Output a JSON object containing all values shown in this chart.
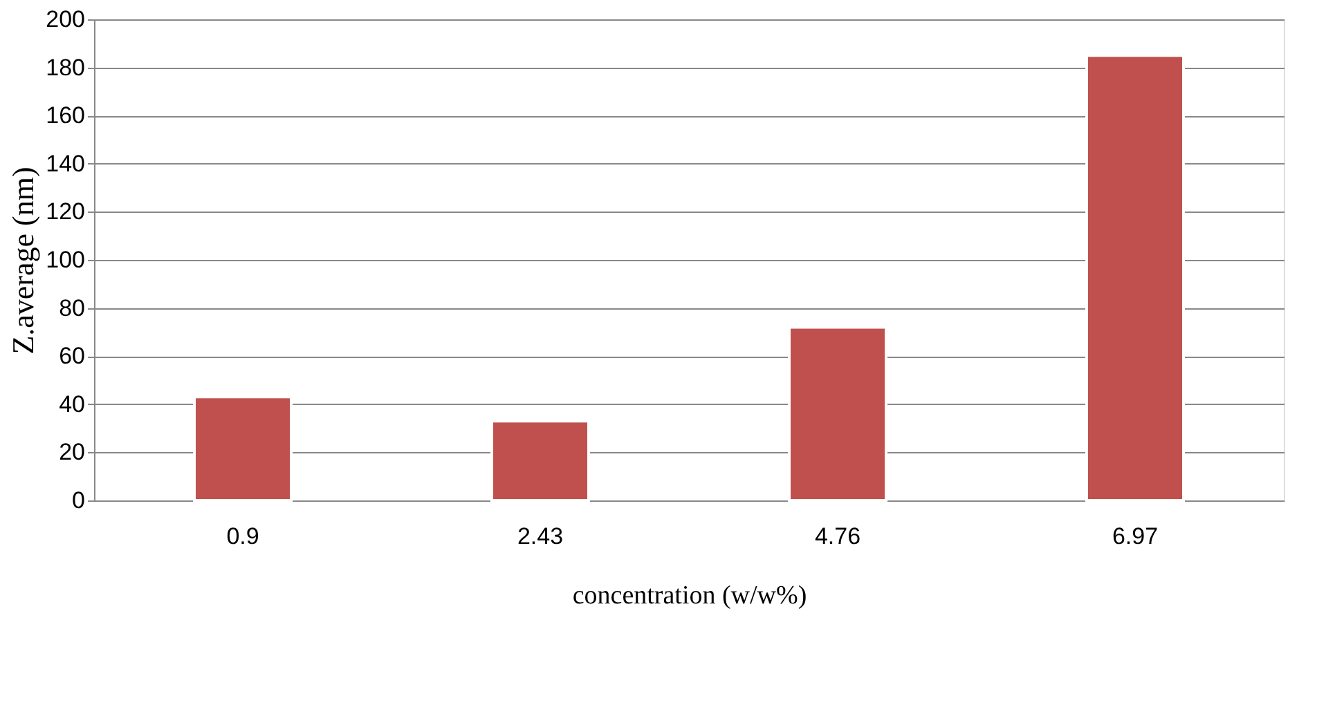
{
  "chart_data": {
    "type": "bar",
    "xlabel": "concentration (w/w%)",
    "ylabel": "Z.average (nm)",
    "categories": [
      "0.9",
      "2.43",
      "4.76",
      "6.97"
    ],
    "values": [
      43,
      33,
      72,
      185
    ],
    "color": "#c0504d",
    "ylim": [
      0,
      200
    ],
    "yticks": [
      0,
      20,
      40,
      60,
      80,
      100,
      120,
      140,
      160,
      180,
      200
    ],
    "grid": "y"
  }
}
